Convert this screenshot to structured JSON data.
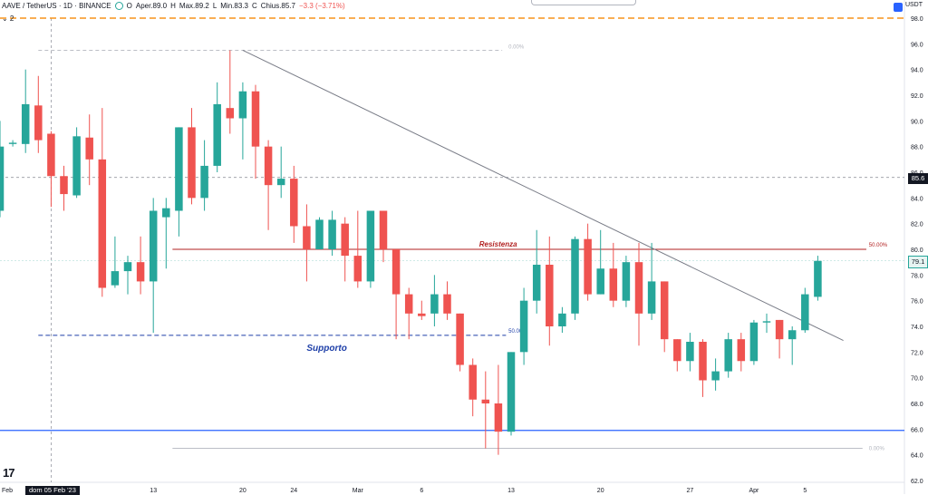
{
  "header": {
    "symbol": "AAVE / TetherUS · 1D · BINANCE",
    "open_label": "O",
    "open_text": "Aper.89.0",
    "high_label": "H",
    "high_text": "Max.89.2",
    "low_label": "L",
    "low_text": "Min.83.3",
    "close_label": "C",
    "close_text": "Chius.85.7",
    "change_text": "−3.3 (−3.71%)",
    "collapse_text": "⌄ 2",
    "currency": "USDT"
  },
  "tags": {
    "date": "dom 05 Feb '23",
    "price_current": "85.6",
    "price_level": "79.1"
  },
  "colors": {
    "up": "#26a69a",
    "down": "#ef5350",
    "resistance": "#b22222",
    "support_dash": "#1e3fa8",
    "support_solid": "#2962ff",
    "orange_dash": "#f7931a",
    "trendline": "#787b86"
  },
  "chart_data": {
    "type": "candlestick",
    "y_axis": {
      "min": 62,
      "max": 98,
      "ticks": [
        62.0,
        64.0,
        66.0,
        68.0,
        70.0,
        72.0,
        74.0,
        76.0,
        78.0,
        80.0,
        82.0,
        84.0,
        86.0,
        88.0,
        90.0,
        92.0,
        94.0,
        96.0,
        98.0
      ],
      "tick_labels": [
        "62.0",
        "64.0",
        "66.0",
        "68.0",
        "70.0",
        "72.0",
        "74.0",
        "76.0",
        "78.0",
        "80.0",
        "82.0",
        "84.0",
        "86.0",
        "88.0",
        "90.0",
        "92.0",
        "94.0",
        "96.0",
        "98.0"
      ]
    },
    "x_axis": {
      "labels": [
        {
          "text": "Feb",
          "index": -0.5
        },
        {
          "text": "13",
          "index": 12
        },
        {
          "text": "20",
          "index": 19
        },
        {
          "text": "24",
          "index": 23
        },
        {
          "text": "Mar",
          "index": 28
        },
        {
          "text": "6",
          "index": 33
        },
        {
          "text": "13",
          "index": 40
        },
        {
          "text": "20",
          "index": 47
        },
        {
          "text": "27",
          "index": 54
        },
        {
          "text": "Apr",
          "index": 59
        },
        {
          "text": "5",
          "index": 63
        }
      ]
    },
    "candles": [
      {
        "o": 83.0,
        "h": 90.0,
        "l": 82.5,
        "c": 88.0
      },
      {
        "o": 88.2,
        "h": 88.5,
        "l": 88.0,
        "c": 88.3
      },
      {
        "o": 88.2,
        "h": 94.0,
        "l": 87.5,
        "c": 91.3
      },
      {
        "o": 91.2,
        "h": 93.5,
        "l": 87.5,
        "c": 88.5
      },
      {
        "o": 89.0,
        "h": 89.2,
        "l": 83.3,
        "c": 85.7
      },
      {
        "o": 85.7,
        "h": 86.5,
        "l": 83.0,
        "c": 84.3
      },
      {
        "o": 84.2,
        "h": 89.5,
        "l": 84.0,
        "c": 88.8
      },
      {
        "o": 88.7,
        "h": 90.5,
        "l": 85.0,
        "c": 87.0
      },
      {
        "o": 87.0,
        "h": 91.0,
        "l": 76.3,
        "c": 77.0
      },
      {
        "o": 77.2,
        "h": 81.0,
        "l": 77.0,
        "c": 78.3
      },
      {
        "o": 78.3,
        "h": 79.5,
        "l": 76.5,
        "c": 79.0
      },
      {
        "o": 79.0,
        "h": 81.0,
        "l": 76.5,
        "c": 77.5
      },
      {
        "o": 77.5,
        "h": 84.0,
        "l": 73.5,
        "c": 83.0
      },
      {
        "o": 82.5,
        "h": 84.0,
        "l": 78.5,
        "c": 83.2
      },
      {
        "o": 83.0,
        "h": 89.5,
        "l": 81.0,
        "c": 89.5
      },
      {
        "o": 89.5,
        "h": 91.0,
        "l": 83.5,
        "c": 84.0
      },
      {
        "o": 84.0,
        "h": 88.5,
        "l": 83.0,
        "c": 86.5
      },
      {
        "o": 86.5,
        "h": 93.0,
        "l": 86.0,
        "c": 91.3
      },
      {
        "o": 91.0,
        "h": 95.5,
        "l": 89.0,
        "c": 90.2
      },
      {
        "o": 90.2,
        "h": 93.0,
        "l": 87.0,
        "c": 92.3
      },
      {
        "o": 92.3,
        "h": 92.8,
        "l": 85.5,
        "c": 88.0
      },
      {
        "o": 88.0,
        "h": 88.5,
        "l": 81.5,
        "c": 85.0
      },
      {
        "o": 85.0,
        "h": 88.0,
        "l": 84.0,
        "c": 85.5
      },
      {
        "o": 85.5,
        "h": 86.5,
        "l": 80.5,
        "c": 81.8
      },
      {
        "o": 81.8,
        "h": 83.5,
        "l": 77.5,
        "c": 80.0
      },
      {
        "o": 80.0,
        "h": 82.5,
        "l": 80.0,
        "c": 82.3
      },
      {
        "o": 80.0,
        "h": 83.0,
        "l": 79.5,
        "c": 82.3
      },
      {
        "o": 82.0,
        "h": 82.5,
        "l": 77.5,
        "c": 79.5
      },
      {
        "o": 79.5,
        "h": 83.0,
        "l": 77.0,
        "c": 77.5
      },
      {
        "o": 77.5,
        "h": 83.0,
        "l": 77.0,
        "c": 83.0
      },
      {
        "o": 83.0,
        "h": 83.0,
        "l": 79.0,
        "c": 80.0
      },
      {
        "o": 80.0,
        "h": 80.0,
        "l": 73.0,
        "c": 76.5
      },
      {
        "o": 76.5,
        "h": 77.0,
        "l": 73.0,
        "c": 75.0
      },
      {
        "o": 75.0,
        "h": 76.0,
        "l": 74.5,
        "c": 74.8
      },
      {
        "o": 75.0,
        "h": 78.0,
        "l": 74.0,
        "c": 76.5
      },
      {
        "o": 76.5,
        "h": 77.5,
        "l": 74.5,
        "c": 75.0
      },
      {
        "o": 75.0,
        "h": 75.0,
        "l": 70.5,
        "c": 71.0
      },
      {
        "o": 71.0,
        "h": 71.5,
        "l": 67.0,
        "c": 68.3
      },
      {
        "o": 68.3,
        "h": 70.5,
        "l": 64.5,
        "c": 68.0
      },
      {
        "o": 68.0,
        "h": 71.0,
        "l": 64.0,
        "c": 65.8
      },
      {
        "o": 65.8,
        "h": 72.0,
        "l": 65.5,
        "c": 72.0
      },
      {
        "o": 72.0,
        "h": 77.0,
        "l": 71.0,
        "c": 76.0
      },
      {
        "o": 76.0,
        "h": 81.5,
        "l": 75.0,
        "c": 78.8
      },
      {
        "o": 78.8,
        "h": 81.0,
        "l": 72.5,
        "c": 74.0
      },
      {
        "o": 74.0,
        "h": 75.5,
        "l": 73.5,
        "c": 75.0
      },
      {
        "o": 75.0,
        "h": 81.0,
        "l": 74.5,
        "c": 80.8
      },
      {
        "o": 80.8,
        "h": 82.0,
        "l": 76.0,
        "c": 76.5
      },
      {
        "o": 76.5,
        "h": 81.5,
        "l": 76.5,
        "c": 78.5
      },
      {
        "o": 78.5,
        "h": 80.5,
        "l": 75.5,
        "c": 76.0
      },
      {
        "o": 76.0,
        "h": 79.5,
        "l": 75.5,
        "c": 79.0
      },
      {
        "o": 79.0,
        "h": 80.5,
        "l": 72.5,
        "c": 75.0
      },
      {
        "o": 75.0,
        "h": 80.5,
        "l": 74.5,
        "c": 77.5
      },
      {
        "o": 77.5,
        "h": 77.5,
        "l": 72.0,
        "c": 73.0
      },
      {
        "o": 73.0,
        "h": 73.0,
        "l": 70.5,
        "c": 71.3
      },
      {
        "o": 71.3,
        "h": 73.5,
        "l": 70.5,
        "c": 72.8
      },
      {
        "o": 72.8,
        "h": 73.0,
        "l": 68.5,
        "c": 69.8
      },
      {
        "o": 69.8,
        "h": 71.5,
        "l": 69.0,
        "c": 70.5
      },
      {
        "o": 70.5,
        "h": 73.5,
        "l": 70.0,
        "c": 73.0
      },
      {
        "o": 73.0,
        "h": 73.5,
        "l": 70.5,
        "c": 71.3
      },
      {
        "o": 71.3,
        "h": 74.5,
        "l": 71.0,
        "c": 74.3
      },
      {
        "o": 74.3,
        "h": 75.0,
        "l": 73.5,
        "c": 74.4
      },
      {
        "o": 74.5,
        "h": 74.5,
        "l": 71.5,
        "c": 73.0
      },
      {
        "o": 73.0,
        "h": 74.0,
        "l": 71.0,
        "c": 73.7
      },
      {
        "o": 73.7,
        "h": 77.0,
        "l": 73.5,
        "c": 76.5
      },
      {
        "o": 76.3,
        "h": 79.5,
        "l": 76.0,
        "c": 79.1
      }
    ],
    "levels": {
      "resistance": {
        "value": 80.0,
        "label": "Resistenza",
        "pct": "50.00%"
      },
      "support_dashed": {
        "value": 73.3,
        "label": "Supporto",
        "pct": "50.00%"
      },
      "support_solid": {
        "value": 65.9
      },
      "fib_top": {
        "value": 95.5,
        "label": "0.00%"
      },
      "fib_bottom": {
        "value": 64.5,
        "label": "0.00%"
      },
      "orange_dashed": {
        "value": 98.0
      },
      "current_price": {
        "value": 85.6
      },
      "level_791": {
        "value": 79.1
      }
    },
    "trendline": {
      "from": {
        "index": 19,
        "value": 95.5
      },
      "to": {
        "index": 66,
        "value": 72.9
      }
    }
  }
}
